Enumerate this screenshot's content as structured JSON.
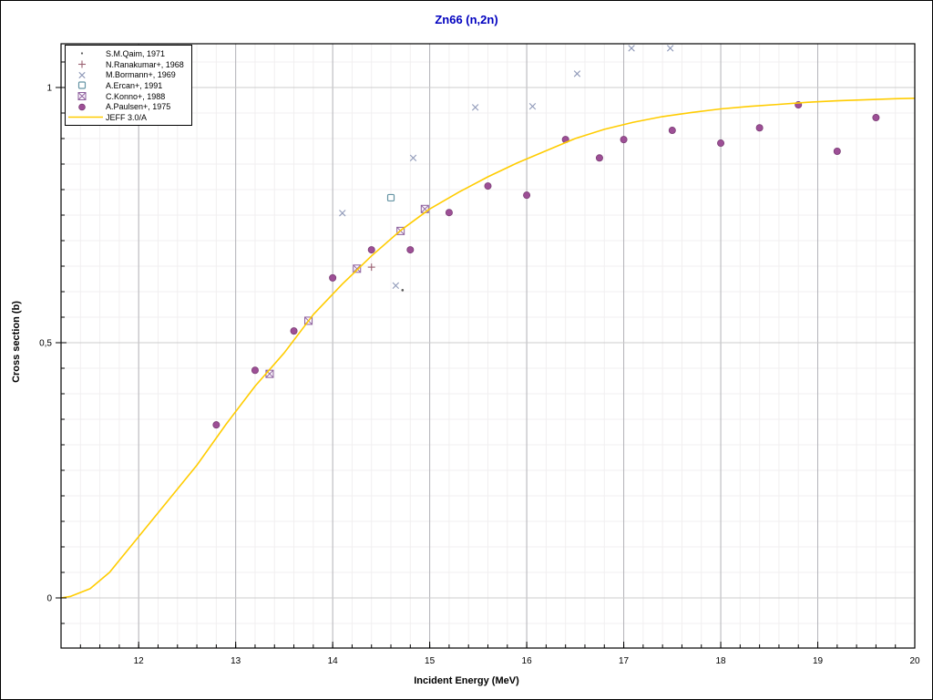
{
  "title": {
    "text": "Zn66 (n,2n)",
    "color": "#0000bf"
  },
  "chart_data": {
    "type": "scatter",
    "title": "Zn66 (n,2n)",
    "xlabel": "Incident Energy (MeV)",
    "ylabel": "Cross section (b)",
    "xlim": [
      11.2,
      20.0
    ],
    "ylim": [
      -0.098,
      1.086
    ],
    "x_major_ticks": [
      12,
      13,
      14,
      15,
      16,
      17,
      18,
      19,
      20
    ],
    "x_tick_labels": [
      "12",
      "13",
      "14",
      "15",
      "16",
      "17",
      "18",
      "19",
      "20"
    ],
    "x_minor_step": 0.2,
    "y_major_ticks": [
      0,
      0.5,
      1
    ],
    "y_tick_labels": [
      "0",
      "0,5",
      "1"
    ],
    "y_minor_step": 0.05,
    "grid": true,
    "legend_position": "top-left",
    "colors": {
      "grid_minor": "#f1eff0",
      "grid_major_v": "#b3b3b8",
      "grid_major_h": "#cccccc",
      "frame": "#000000"
    },
    "series": [
      {
        "name": "S.M.Qaim, 1971",
        "type": "scatter",
        "marker": "dot",
        "color": "#5a5a5a",
        "points": [
          [
            14.72,
            0.603
          ]
        ]
      },
      {
        "name": "N.Ranakumar+, 1968",
        "type": "scatter",
        "marker": "plus",
        "color": "#9a6070",
        "points": [
          [
            14.4,
            0.648
          ]
        ]
      },
      {
        "name": "M.Bormann+, 1969",
        "type": "scatter",
        "marker": "x",
        "color": "#8f99b8",
        "points": [
          [
            14.1,
            0.754
          ],
          [
            14.65,
            0.612
          ],
          [
            14.83,
            0.862
          ],
          [
            15.47,
            0.961
          ],
          [
            16.06,
            0.963
          ],
          [
            16.52,
            1.027
          ],
          [
            17.08,
            1.077
          ],
          [
            17.48,
            1.077
          ]
        ]
      },
      {
        "name": "A.Ercan+, 1991",
        "type": "scatter",
        "marker": "square-open",
        "color": "#6594a4",
        "points": [
          [
            14.6,
            0.784
          ]
        ]
      },
      {
        "name": "C.Konno+, 1988",
        "type": "scatter",
        "marker": "square-x",
        "color": "#8d5f9d",
        "points": [
          [
            13.35,
            0.439
          ],
          [
            13.75,
            0.543
          ],
          [
            14.25,
            0.645
          ],
          [
            14.7,
            0.719
          ],
          [
            14.95,
            0.762
          ]
        ]
      },
      {
        "name": "A.Paulsen+, 1975",
        "type": "scatter",
        "marker": "circle",
        "color": "#9d4f96",
        "points": [
          [
            12.8,
            0.339
          ],
          [
            13.2,
            0.446
          ],
          [
            13.6,
            0.523
          ],
          [
            14.0,
            0.627
          ],
          [
            14.4,
            0.682
          ],
          [
            14.8,
            0.682
          ],
          [
            15.2,
            0.755
          ],
          [
            15.6,
            0.807
          ],
          [
            16.0,
            0.789
          ],
          [
            16.4,
            0.898
          ],
          [
            16.75,
            0.862
          ],
          [
            17.0,
            0.898
          ],
          [
            17.5,
            0.916
          ],
          [
            18.0,
            0.891
          ],
          [
            18.4,
            0.921
          ],
          [
            18.8,
            0.966
          ],
          [
            19.2,
            0.875
          ],
          [
            19.6,
            0.941
          ]
        ]
      },
      {
        "name": "JEFF 3.0/A",
        "type": "line",
        "marker": "line",
        "color": "#ffcc00",
        "points": [
          [
            11.2,
            0.0
          ],
          [
            11.3,
            0.003
          ],
          [
            11.5,
            0.018
          ],
          [
            11.7,
            0.05
          ],
          [
            12.0,
            0.12
          ],
          [
            12.3,
            0.19
          ],
          [
            12.6,
            0.26
          ],
          [
            12.9,
            0.34
          ],
          [
            13.2,
            0.415
          ],
          [
            13.5,
            0.48
          ],
          [
            13.8,
            0.555
          ],
          [
            14.1,
            0.615
          ],
          [
            14.4,
            0.67
          ],
          [
            14.7,
            0.72
          ],
          [
            15.0,
            0.762
          ],
          [
            15.3,
            0.795
          ],
          [
            15.6,
            0.825
          ],
          [
            15.9,
            0.852
          ],
          [
            16.2,
            0.876
          ],
          [
            16.5,
            0.9
          ],
          [
            16.8,
            0.918
          ],
          [
            17.1,
            0.932
          ],
          [
            17.4,
            0.943
          ],
          [
            17.7,
            0.951
          ],
          [
            18.0,
            0.958
          ],
          [
            18.3,
            0.963
          ],
          [
            18.6,
            0.967
          ],
          [
            18.9,
            0.971
          ],
          [
            19.2,
            0.974
          ],
          [
            19.5,
            0.976
          ],
          [
            19.8,
            0.978
          ],
          [
            20.0,
            0.979
          ]
        ]
      }
    ]
  }
}
